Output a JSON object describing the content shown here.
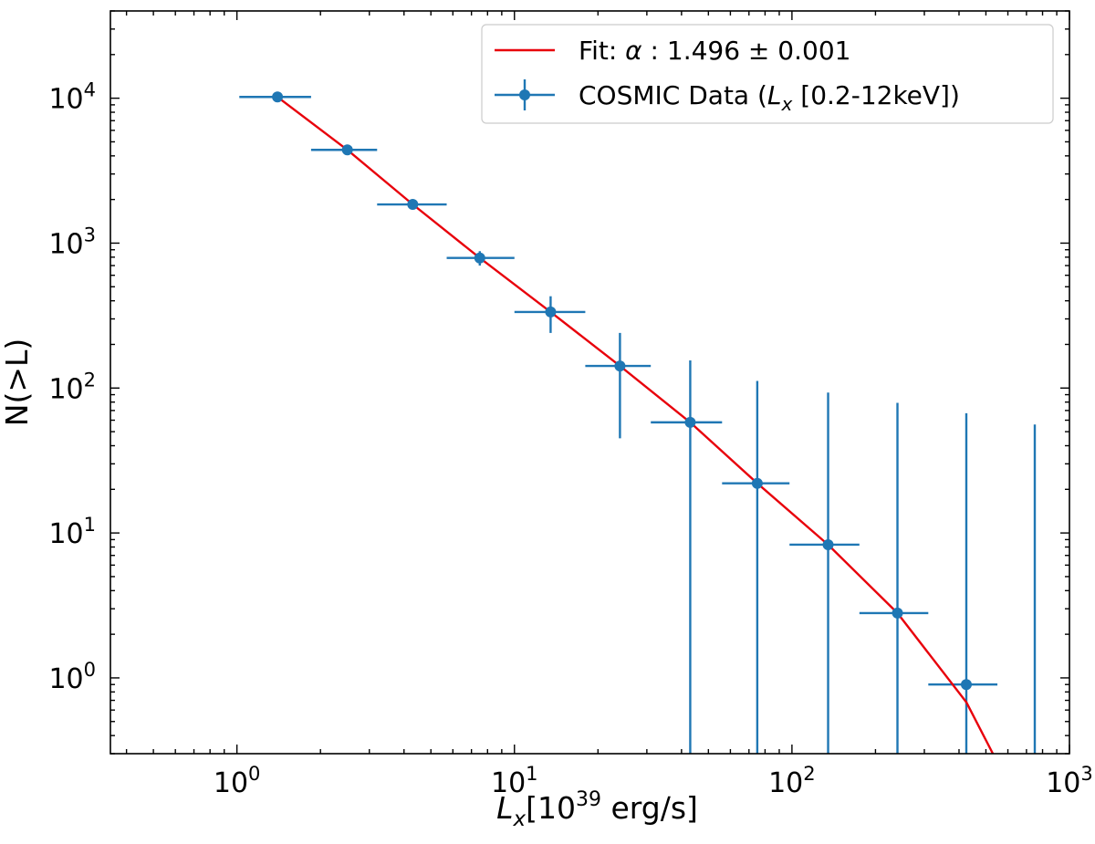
{
  "chart_data": {
    "type": "scatter",
    "xscale": "log",
    "yscale": "log",
    "xlim": [
      0.35,
      1000
    ],
    "ylim": [
      0.3,
      40000
    ],
    "grid": false,
    "ticks_direction": "in",
    "x_ticks": [
      {
        "value": 1,
        "base": "10",
        "exp": "0"
      },
      {
        "value": 10,
        "base": "10",
        "exp": "1"
      },
      {
        "value": 100,
        "base": "10",
        "exp": "2"
      },
      {
        "value": 1000,
        "base": "10",
        "exp": "3"
      }
    ],
    "y_ticks": [
      {
        "value": 1,
        "base": "10",
        "exp": "0"
      },
      {
        "value": 10,
        "base": "10",
        "exp": "1"
      },
      {
        "value": 100,
        "base": "10",
        "exp": "2"
      },
      {
        "value": 1000,
        "base": "10",
        "exp": "3"
      },
      {
        "value": 10000,
        "base": "10",
        "exp": "4"
      }
    ],
    "xlabel": {
      "main": "L",
      "sub": "x",
      "pre_sup": "[10",
      "sup": "39",
      "post_sup": " erg/s]"
    },
    "ylabel": "N(>L)",
    "legend_position": "upper right",
    "series": [
      {
        "name": "COSMIC Data (L_x [0.2-12keV])",
        "legend_parts": {
          "pre": "COSMIC Data (",
          "italic": "L",
          "sub": "x",
          "post": " [0.2-12keV])"
        },
        "kind": "errorbar",
        "color": "#1f77b4",
        "points": [
          {
            "x": 1.4,
            "y": 10200,
            "xerr": [
              1.02,
              1.85
            ],
            "yerr": [
              10000,
              10400
            ]
          },
          {
            "x": 2.5,
            "y": 4400,
            "xerr": [
              1.85,
              3.2
            ],
            "yerr": [
              4300,
              4500
            ]
          },
          {
            "x": 4.3,
            "y": 1850,
            "xerr": [
              3.2,
              5.7
            ],
            "yerr": [
              1800,
              1900
            ]
          },
          {
            "x": 7.5,
            "y": 790,
            "xerr": [
              5.7,
              10
            ],
            "yerr": [
              700,
              880
            ]
          },
          {
            "x": 13.5,
            "y": 335,
            "xerr": [
              10,
              18
            ],
            "yerr": [
              240,
              430
            ]
          },
          {
            "x": 24,
            "y": 142,
            "xerr": [
              18,
              31
            ],
            "yerr": [
              45,
              240
            ]
          },
          {
            "x": 43,
            "y": 58,
            "xerr": [
              31,
              56
            ],
            "yerr": [
              0.3,
              155
            ]
          },
          {
            "x": 75,
            "y": 22,
            "xerr": [
              56,
              98
            ],
            "yerr": [
              0.3,
              112
            ]
          },
          {
            "x": 135,
            "y": 8.3,
            "xerr": [
              98,
              175
            ],
            "yerr": [
              0.3,
              93
            ]
          },
          {
            "x": 240,
            "y": 2.8,
            "xerr": [
              175,
              310
            ],
            "yerr": [
              0.3,
              79
            ]
          },
          {
            "x": 425,
            "y": 0.9,
            "xerr": [
              310,
              550
            ],
            "yerr": [
              0.3,
              67
            ]
          },
          {
            "x": 750,
            "y": null,
            "xerr": null,
            "yerr": [
              0.3,
              56
            ]
          }
        ]
      },
      {
        "name": "Fit: α : 1.496 ± 0.001",
        "legend_parts": {
          "pre": "Fit: ",
          "italic": "α",
          "post": " : 1.496 ± 0.001"
        },
        "kind": "line",
        "color": "#e8000b",
        "x": [
          1.4,
          2.5,
          4.3,
          7.5,
          13.5,
          24,
          43,
          75,
          135,
          240,
          425,
          530
        ],
        "y": [
          10200,
          4400,
          1850,
          790,
          335,
          142,
          58,
          22,
          8.3,
          2.8,
          0.68,
          0.3
        ]
      }
    ]
  }
}
